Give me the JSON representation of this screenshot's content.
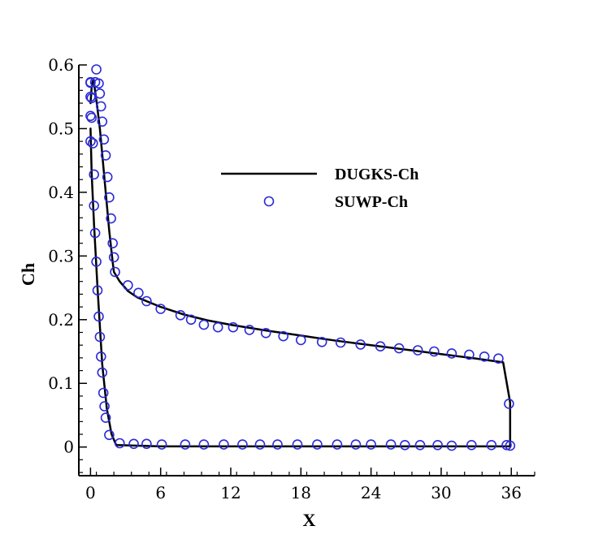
{
  "chart_data": {
    "type": "line",
    "xlabel": "X",
    "ylabel": "Ch",
    "xlim": [
      -1,
      38
    ],
    "ylim": [
      -0.045,
      0.6
    ],
    "xticks": [
      0,
      6,
      12,
      18,
      24,
      30,
      36
    ],
    "xtick_labels": [
      "0",
      "6",
      "12",
      "18",
      "24",
      "30",
      "36"
    ],
    "yticks": [
      0,
      0.1,
      0.2,
      0.3,
      0.4,
      0.5,
      0.6
    ],
    "ytick_labels": [
      "0",
      "0.1",
      "0.2",
      "0.3",
      "0.4",
      "0.5",
      "0.6"
    ],
    "grid": false,
    "legend_position": "upper-right",
    "colors": {
      "line": "#000000",
      "markers": "#2a2ad8"
    },
    "series": [
      {
        "name": "DUGKS-Ch",
        "style": "line",
        "x": [
          0.0,
          0.1,
          0.2,
          0.35,
          0.5,
          0.8,
          1.0,
          1.3,
          1.6,
          1.9,
          2.0,
          2.5,
          3.2,
          4.0,
          6.0,
          8.0,
          10.0,
          12.0,
          15.0,
          18.0,
          21.0,
          24.0,
          27.0,
          30.0,
          33.0,
          35.3,
          35.9,
          35.9,
          35.0,
          30.0,
          24.0,
          18.0,
          12.0,
          6.0,
          2.2,
          1.8,
          1.4,
          1.0,
          0.6,
          0.3,
          0.1,
          0.0
        ],
        "y": [
          0.54,
          0.565,
          0.575,
          0.565,
          0.545,
          0.5,
          0.46,
          0.4,
          0.34,
          0.29,
          0.275,
          0.26,
          0.245,
          0.235,
          0.22,
          0.208,
          0.199,
          0.192,
          0.183,
          0.175,
          0.167,
          0.16,
          0.153,
          0.146,
          0.139,
          0.133,
          0.07,
          0.001,
          0.001,
          0.001,
          0.001,
          0.001,
          0.001,
          0.001,
          0.003,
          0.02,
          0.06,
          0.13,
          0.25,
          0.35,
          0.43,
          0.5
        ]
      },
      {
        "name": "SUWP-Ch",
        "style": "markers",
        "x": [
          0.5,
          0.4,
          0.7,
          0.8,
          0.9,
          1.0,
          1.15,
          1.3,
          1.45,
          1.6,
          1.75,
          1.9,
          2.0,
          2.1,
          3.2,
          4.1,
          4.8,
          6.0,
          7.7,
          8.6,
          9.7,
          10.9,
          12.2,
          13.6,
          15.0,
          16.5,
          18.0,
          19.8,
          21.4,
          23.1,
          24.8,
          26.4,
          28.0,
          29.4,
          30.9,
          32.4,
          33.7,
          34.9,
          35.8,
          35.9,
          35.6,
          34.3,
          32.6,
          30.9,
          29.7,
          28.2,
          26.9,
          25.7,
          24.0,
          22.7,
          21.1,
          19.4,
          17.7,
          16.0,
          14.5,
          13.0,
          11.4,
          9.7,
          8.1,
          6.1,
          4.8,
          3.7,
          2.5,
          1.6,
          1.3,
          1.2,
          1.1,
          1.0,
          0.9,
          0.8,
          0.7,
          0.6,
          0.5,
          0.4,
          0.3,
          0.3,
          0.2,
          0.1,
          0.1,
          0.0,
          0.0,
          0.0,
          0.0,
          0.0
        ],
        "y": [
          0.593,
          0.573,
          0.571,
          0.555,
          0.535,
          0.511,
          0.483,
          0.458,
          0.424,
          0.392,
          0.359,
          0.32,
          0.298,
          0.275,
          0.254,
          0.242,
          0.229,
          0.217,
          0.207,
          0.2,
          0.192,
          0.188,
          0.188,
          0.184,
          0.179,
          0.174,
          0.168,
          0.165,
          0.164,
          0.161,
          0.158,
          0.155,
          0.152,
          0.15,
          0.147,
          0.145,
          0.142,
          0.139,
          0.068,
          0.002,
          0.003,
          0.003,
          0.003,
          0.002,
          0.003,
          0.003,
          0.003,
          0.004,
          0.004,
          0.004,
          0.004,
          0.004,
          0.004,
          0.004,
          0.004,
          0.004,
          0.004,
          0.004,
          0.004,
          0.004,
          0.005,
          0.005,
          0.006,
          0.019,
          0.046,
          0.064,
          0.085,
          0.117,
          0.142,
          0.173,
          0.205,
          0.246,
          0.291,
          0.336,
          0.379,
          0.428,
          0.477,
          0.517,
          0.548,
          0.572,
          0.573,
          0.55,
          0.52,
          0.48
        ]
      }
    ]
  }
}
